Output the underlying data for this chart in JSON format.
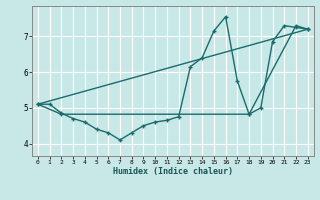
{
  "xlabel": "Humidex (Indice chaleur)",
  "background_color": "#c8e8e8",
  "grid_color": "#ffffff",
  "line_color": "#1a6b6b",
  "xmin": -0.5,
  "xmax": 23.5,
  "ymin": 3.65,
  "ymax": 7.85,
  "yticks": [
    4,
    5,
    6,
    7
  ],
  "xticks": [
    0,
    1,
    2,
    3,
    4,
    5,
    6,
    7,
    8,
    9,
    10,
    11,
    12,
    13,
    14,
    15,
    16,
    17,
    18,
    19,
    20,
    21,
    22,
    23
  ],
  "series1_x": [
    0,
    1,
    2,
    3,
    4,
    5,
    6,
    7,
    8,
    9,
    10,
    11,
    12,
    13,
    14,
    15,
    16,
    17,
    18,
    19,
    20,
    21,
    22,
    23
  ],
  "series1_y": [
    5.1,
    5.1,
    4.85,
    4.7,
    4.6,
    4.4,
    4.3,
    4.1,
    4.3,
    4.5,
    4.6,
    4.65,
    4.75,
    6.15,
    6.4,
    7.15,
    7.55,
    5.75,
    4.82,
    5.0,
    6.85,
    7.3,
    7.25,
    7.2
  ],
  "series2_x": [
    0,
    2,
    18,
    22,
    23
  ],
  "series2_y": [
    5.1,
    4.82,
    4.82,
    7.3,
    7.2
  ],
  "series3_x": [
    0,
    23
  ],
  "series3_y": [
    5.1,
    7.2
  ]
}
